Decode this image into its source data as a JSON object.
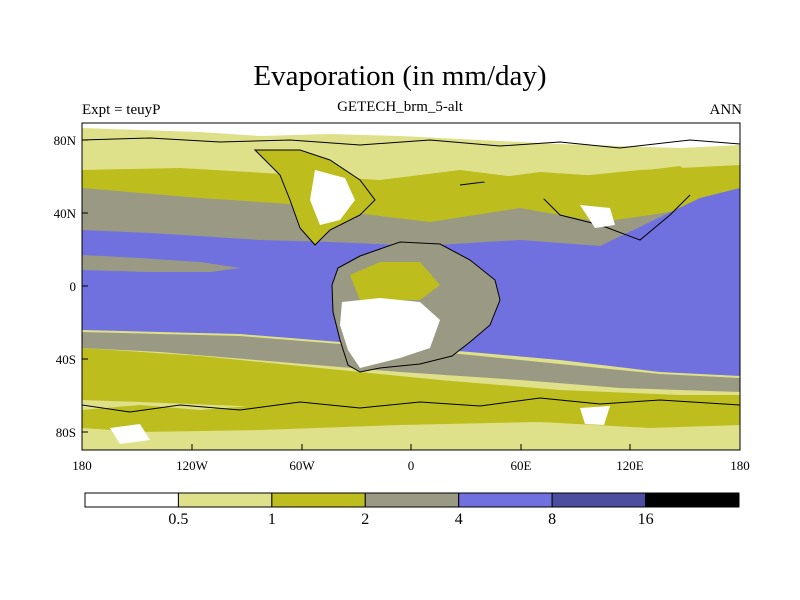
{
  "title": "Evaporation (in mm/day)",
  "subtitle": "GETECH_brm_5-alt",
  "left_label": "Expt = teuyP",
  "right_label": "ANN",
  "axes": {
    "y_ticks": [
      "80N",
      "40N",
      "0",
      "40S",
      "80S"
    ],
    "x_ticks": [
      "180",
      "120W",
      "60W",
      "0",
      "60E",
      "120E",
      "180"
    ]
  },
  "colorbar": {
    "colors": [
      "#ffffff",
      "#dfe08a",
      "#bdbd1e",
      "#9a9a84",
      "#7070df",
      "#4d4da0",
      "#000000"
    ],
    "labels": [
      "0.5",
      "1",
      "2",
      "4",
      "8",
      "16"
    ]
  }
}
